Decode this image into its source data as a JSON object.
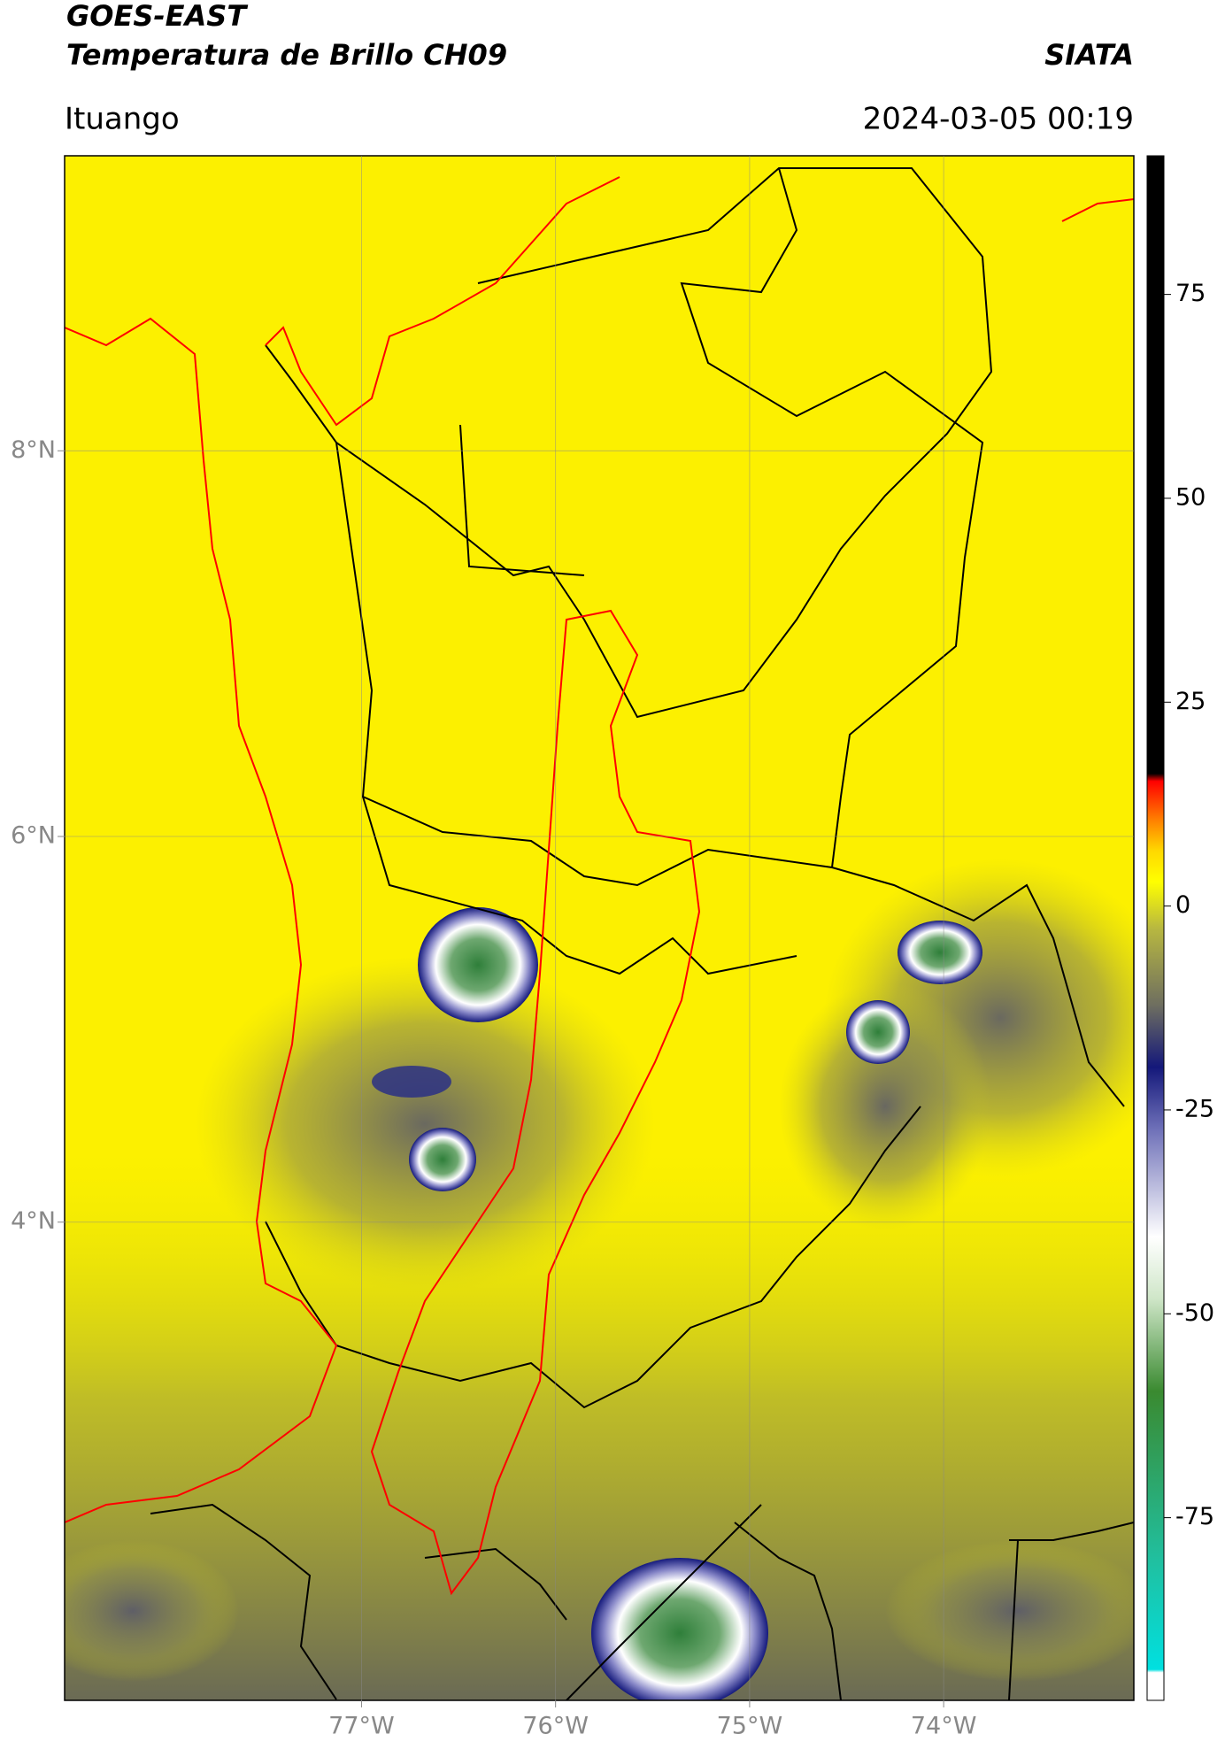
{
  "chart_data": {
    "type": "map",
    "title": "GOES-EAST",
    "subtitle": "Temperatura de Brillo CH09",
    "source": "SIATA",
    "location": "Ituango",
    "datetime": "2024-03-05 00:19",
    "xlim": [
      -78.53,
      -73.02
    ],
    "ylim": [
      1.52,
      9.53
    ],
    "xticks": [
      {
        "value": -77,
        "label": "77°W"
      },
      {
        "value": -76,
        "label": "76°W"
      },
      {
        "value": -75,
        "label": "75°W"
      },
      {
        "value": -74,
        "label": "74°W"
      }
    ],
    "yticks": [
      {
        "value": 4,
        "label": "4°N"
      },
      {
        "value": 6,
        "label": "6°N"
      },
      {
        "value": 8,
        "label": "8°N"
      }
    ],
    "grid": true,
    "colorbar": {
      "lim": [
        -97.4,
        92
      ],
      "ticks": [
        -75,
        -50,
        -25,
        0,
        25,
        50,
        75
      ]
    }
  }
}
